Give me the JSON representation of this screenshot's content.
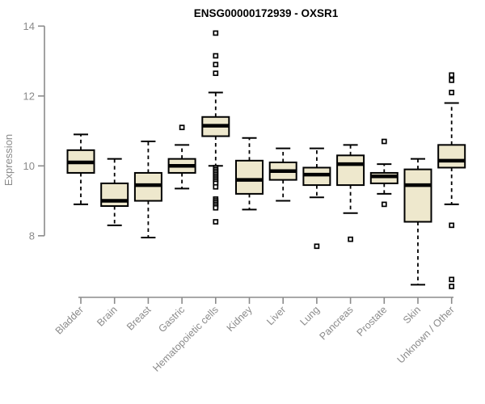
{
  "chart_data": {
    "type": "boxplot",
    "title": "ENSG00000172939 - OXSR1",
    "xlabel": "",
    "ylabel": "Expression",
    "yticks": [
      8,
      10,
      12,
      14
    ],
    "y_axis_range": [
      8,
      14
    ],
    "grid": false,
    "legend": "none",
    "categories": [
      "Bladder",
      "Brain",
      "Breast",
      "Gastric",
      "Hematopoietic cells",
      "Kidney",
      "Liver",
      "Lung",
      "Pancreas",
      "Prostate",
      "Skin",
      "Unknown / Other"
    ],
    "boxes": [
      {
        "category": "Bladder",
        "whisker_low": 8.9,
        "q1": 9.8,
        "median": 10.1,
        "q3": 10.45,
        "whisker_high": 10.9,
        "outliers": []
      },
      {
        "category": "Brain",
        "whisker_low": 8.3,
        "q1": 8.85,
        "median": 9.0,
        "q3": 9.5,
        "whisker_high": 10.2,
        "outliers": []
      },
      {
        "category": "Breast",
        "whisker_low": 7.95,
        "q1": 9.0,
        "median": 9.45,
        "q3": 9.8,
        "whisker_high": 10.7,
        "outliers": []
      },
      {
        "category": "Gastric",
        "whisker_low": 9.35,
        "q1": 9.8,
        "median": 10.0,
        "q3": 10.2,
        "whisker_high": 10.6,
        "outliers": [
          11.1
        ]
      },
      {
        "category": "Hematopoietic cells",
        "whisker_low": 10.0,
        "q1": 10.85,
        "median": 11.15,
        "q3": 11.4,
        "whisker_high": 12.1,
        "outliers": [
          13.8,
          13.15,
          12.9,
          12.65,
          9.95,
          9.9,
          9.85,
          9.8,
          9.75,
          9.7,
          9.65,
          9.6,
          9.55,
          9.5,
          9.4,
          9.05,
          9.0,
          8.95,
          8.9,
          8.85,
          8.8,
          8.4
        ]
      },
      {
        "category": "Kidney",
        "whisker_low": 8.75,
        "q1": 9.2,
        "median": 9.6,
        "q3": 10.15,
        "whisker_high": 10.8,
        "outliers": []
      },
      {
        "category": "Liver",
        "whisker_low": 9.0,
        "q1": 9.6,
        "median": 9.85,
        "q3": 10.1,
        "whisker_high": 10.5,
        "outliers": []
      },
      {
        "category": "Lung",
        "whisker_low": 9.1,
        "q1": 9.45,
        "median": 9.75,
        "q3": 9.95,
        "whisker_high": 10.5,
        "outliers": [
          7.7
        ]
      },
      {
        "category": "Pancreas",
        "whisker_low": 8.65,
        "q1": 9.45,
        "median": 10.05,
        "q3": 10.3,
        "whisker_high": 10.6,
        "outliers": [
          7.9
        ]
      },
      {
        "category": "Prostate",
        "whisker_low": 9.2,
        "q1": 9.5,
        "median": 9.7,
        "q3": 9.8,
        "whisker_high": 10.05,
        "outliers": [
          10.7,
          8.9
        ]
      },
      {
        "category": "Skin",
        "whisker_low": 6.6,
        "q1": 8.4,
        "median": 9.45,
        "q3": 9.9,
        "whisker_high": 10.2,
        "outliers": []
      },
      {
        "category": "Unknown / Other",
        "whisker_low": 8.9,
        "q1": 9.95,
        "median": 10.15,
        "q3": 10.6,
        "whisker_high": 11.8,
        "outliers": [
          12.6,
          12.45,
          12.1,
          8.3,
          6.75,
          6.55
        ]
      }
    ],
    "colors": {
      "box_fill": "#EEE8CD",
      "box_border": "#000000",
      "median_line": "#000000",
      "whisker": "#000000",
      "outlier": "#000000",
      "axis": "#8b8b8b",
      "tick_label": "#8b8b8b",
      "title": "#000000",
      "background": "#ffffff"
    }
  }
}
